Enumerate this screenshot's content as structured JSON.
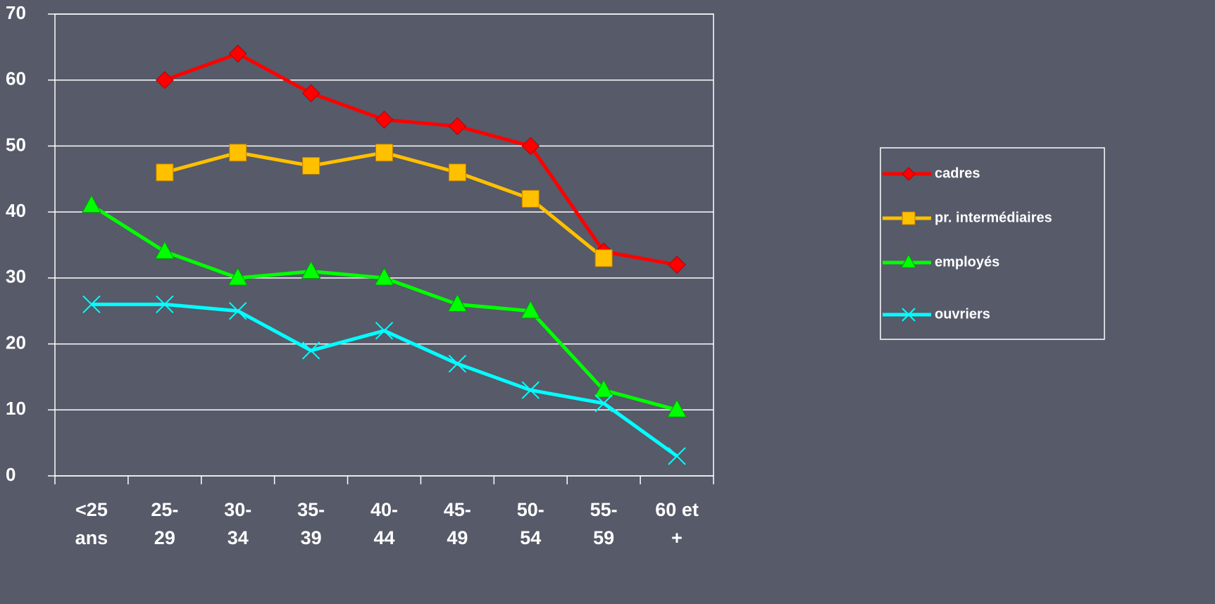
{
  "chart_data": {
    "type": "line",
    "categories": [
      [
        "<25",
        "ans"
      ],
      [
        "25-",
        "29"
      ],
      [
        "30-",
        "34"
      ],
      [
        "35-",
        "39"
      ],
      [
        "40-",
        "44"
      ],
      [
        "45-",
        "49"
      ],
      [
        "50-",
        "54"
      ],
      [
        "55-",
        "59"
      ],
      [
        "60 et",
        "+"
      ]
    ],
    "series": [
      {
        "name": "cadres",
        "color": "#ff0000",
        "marker": "diamond",
        "values": [
          null,
          60,
          64,
          58,
          54,
          53,
          50,
          34,
          32
        ]
      },
      {
        "name": "pr. intermédiaires",
        "color": "#ffc000",
        "marker": "square",
        "values": [
          null,
          46,
          49,
          47,
          49,
          46,
          42,
          33,
          null
        ]
      },
      {
        "name": "employés",
        "color": "#00ff00",
        "marker": "triangle",
        "values": [
          41,
          34,
          30,
          31,
          30,
          26,
          25,
          13,
          10
        ]
      },
      {
        "name": "ouvriers",
        "color": "#00ffff",
        "marker": "x",
        "values": [
          26,
          26,
          25,
          19,
          22,
          17,
          13,
          11,
          3
        ]
      }
    ],
    "ylim": [
      0,
      70
    ],
    "yticks": [
      0,
      10,
      20,
      30,
      40,
      50,
      60,
      70
    ],
    "grid": true,
    "legend": "right"
  }
}
